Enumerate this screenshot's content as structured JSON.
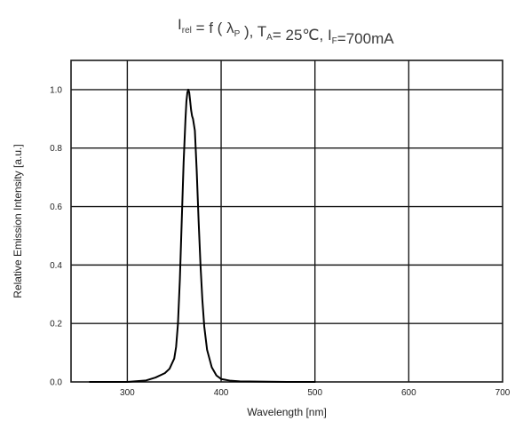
{
  "chart_data": {
    "type": "line",
    "title": {
      "parts": [
        {
          "text": "I",
          "sub": "rel"
        },
        {
          "text": " = f ( λ",
          "sub": "P"
        },
        {
          "text": " ),  T",
          "sub": "A"
        },
        {
          "text": "= 25℃,  I",
          "sub": "F"
        },
        {
          "text": "=700mA",
          "sub": ""
        }
      ]
    },
    "xlabel": "Wavelength [nm]",
    "ylabel": "Relative Emission Intensity [a.u.]",
    "xlim": [
      240,
      700
    ],
    "ylim": [
      0,
      1.1
    ],
    "x_ticks": [
      300,
      400,
      500,
      600,
      700
    ],
    "y_ticks": [
      0.0,
      0.2,
      0.4,
      0.6,
      0.8,
      1.0
    ],
    "x_tick_labels": [
      "300",
      "400",
      "500",
      "600",
      "700"
    ],
    "y_tick_labels": [
      "0.0",
      "0.2",
      "0.4",
      "0.6",
      "0.8",
      "1.0"
    ],
    "grid": true,
    "series": [
      {
        "color": "#000000",
        "x": [
          260,
          300,
          320,
          330,
          340,
          345,
          350,
          352,
          354,
          356,
          358,
          360,
          362,
          363,
          364,
          365,
          366,
          367,
          368,
          369,
          370,
          372,
          374,
          376,
          378,
          380,
          382,
          385,
          390,
          395,
          400,
          410,
          420,
          440,
          470,
          500
        ],
        "y": [
          0.0,
          0.0,
          0.005,
          0.015,
          0.03,
          0.045,
          0.08,
          0.12,
          0.2,
          0.35,
          0.55,
          0.75,
          0.9,
          0.96,
          0.99,
          1.0,
          0.99,
          0.96,
          0.93,
          0.91,
          0.9,
          0.86,
          0.72,
          0.55,
          0.4,
          0.28,
          0.19,
          0.11,
          0.05,
          0.022,
          0.01,
          0.004,
          0.002,
          0.001,
          0.0,
          0.0
        ]
      }
    ]
  }
}
